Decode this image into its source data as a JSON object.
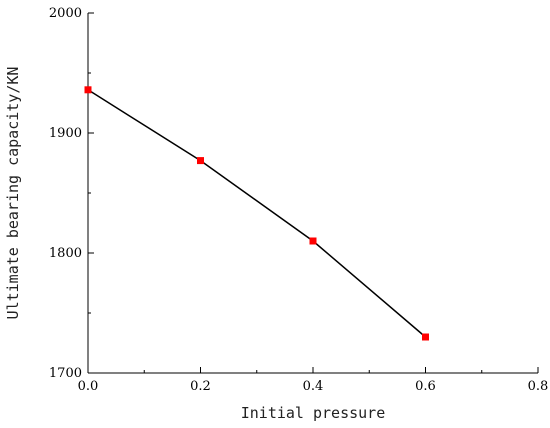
{
  "chart_data": {
    "type": "line",
    "title": "",
    "xlabel": "Initial pressure",
    "ylabel": "Ultimate bearing capacity/KN",
    "xlim": [
      0.0,
      0.8
    ],
    "ylim": [
      1700,
      2000
    ],
    "xticks": [
      "0.0",
      "0.2",
      "0.4",
      "0.6",
      "0.8"
    ],
    "yticks": [
      "1700",
      "1800",
      "1900",
      "2000"
    ],
    "grid": false,
    "legend": "none",
    "line_color": "#000000",
    "marker_color": "#ff0000",
    "marker": "square",
    "x": [
      0.0,
      0.2,
      0.4,
      0.6
    ],
    "y": [
      1936,
      1877,
      1810,
      1730
    ]
  }
}
